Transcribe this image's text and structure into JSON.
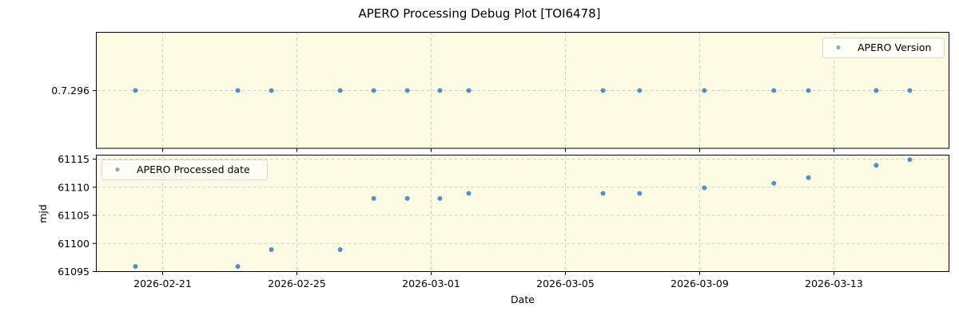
{
  "figure": {
    "title": "APERO Processing Debug Plot [TOI6478]",
    "background": "#ffffff",
    "axes_facecolor": "#fdfbe3",
    "marker_color": "#3d86bf",
    "grid_color": "#cccccc"
  },
  "chart_data": [
    {
      "type": "scatter",
      "panel": "top",
      "title": "",
      "xlabel": "",
      "ylabel": "",
      "legend": {
        "entries": [
          "APERO Version"
        ],
        "position": "upper right"
      },
      "grid": true,
      "y_tick_labels": [
        "0.7.296"
      ],
      "x_tick_labels": [
        "2026-02-21",
        "2026-02-25",
        "2026-03-01",
        "2026-03-05",
        "2026-03-09",
        "2026-03-13"
      ],
      "x_tick_labels_visible": false,
      "series": [
        {
          "name": "APERO Version",
          "x": [
            "2026-02-20.19",
            "2026-02-23.24",
            "2026-02-24.24",
            "2026-02-26.29",
            "2026-02-27.29",
            "2026-02-28.29",
            "2026-03-01.26",
            "2026-03-02.12",
            "2026-03-06.12",
            "2026-03-07.21",
            "2026-03-09.14",
            "2026-03-11.21",
            "2026-03-12.24",
            "2026-03-14.26",
            "2026-03-15.26"
          ],
          "y": [
            "0.7.296",
            "0.7.296",
            "0.7.296",
            "0.7.296",
            "0.7.296",
            "0.7.296",
            "0.7.296",
            "0.7.296",
            "0.7.296",
            "0.7.296",
            "0.7.296",
            "0.7.296",
            "0.7.296",
            "0.7.296",
            "0.7.296"
          ]
        }
      ]
    },
    {
      "type": "scatter",
      "panel": "bottom",
      "title": "",
      "xlabel": "Date",
      "ylabel": "mjd",
      "legend": {
        "entries": [
          "APERO Processed date"
        ],
        "position": "upper left"
      },
      "grid": true,
      "ylim": [
        61094.8,
        61115.4
      ],
      "y_ticks": [
        61095,
        61100,
        61105,
        61110,
        61115
      ],
      "y_tick_labels": [
        "61095",
        "61100",
        "61105",
        "61110",
        "61115"
      ],
      "x_tick_labels": [
        "2026-02-21",
        "2026-02-25",
        "2026-03-01",
        "2026-03-05",
        "2026-03-09",
        "2026-03-13"
      ],
      "xlim": [
        "2026-02-19.0",
        "2026-03-16.43"
      ],
      "series": [
        {
          "name": "APERO Processed date",
          "x": [
            "2026-02-20.19",
            "2026-02-23.24",
            "2026-02-24.24",
            "2026-02-26.29",
            "2026-02-27.29",
            "2026-02-28.29",
            "2026-03-01.26",
            "2026-03-02.12",
            "2026-03-06.12",
            "2026-03-07.21",
            "2026-03-09.14",
            "2026-03-11.21",
            "2026-03-12.24",
            "2026-03-14.26",
            "2026-03-15.26"
          ],
          "x_days_from_2026_02_21": [
            -0.81,
            2.24,
            3.24,
            5.29,
            6.29,
            7.29,
            8.26,
            9.12,
            13.12,
            14.21,
            16.14,
            18.21,
            19.24,
            21.26,
            22.26
          ],
          "y": [
            61095.9,
            61095.9,
            61098.9,
            61098.9,
            61108.0,
            61108.0,
            61108.0,
            61108.9,
            61108.9,
            61108.9,
            61109.9,
            61110.7,
            61111.7,
            61113.9,
            61114.9
          ]
        }
      ]
    }
  ]
}
